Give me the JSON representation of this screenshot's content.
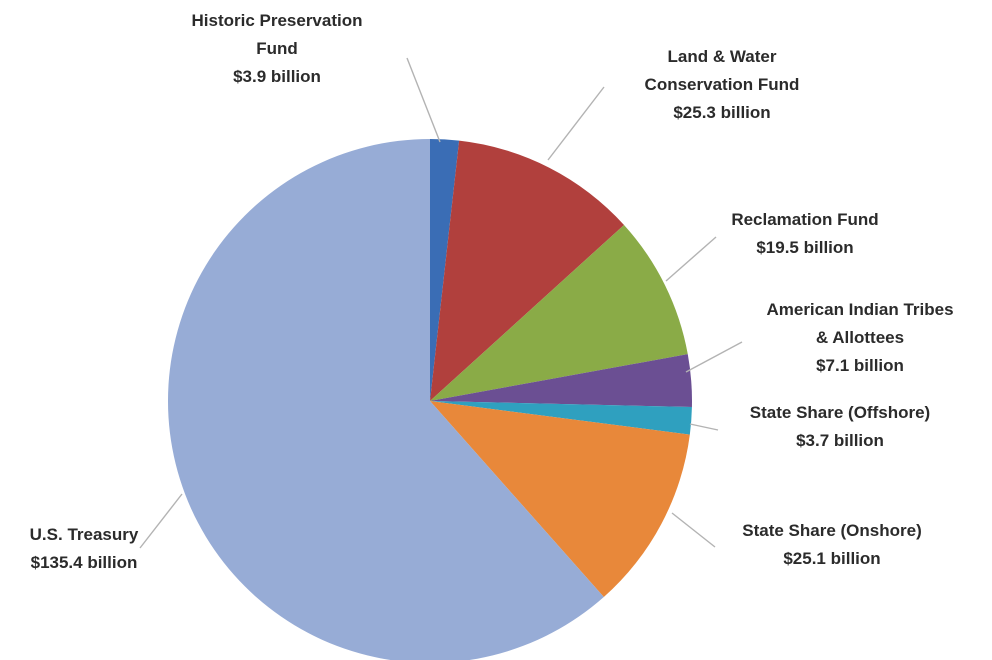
{
  "chart_data": {
    "type": "pie",
    "title": "",
    "unit": "billion dollars",
    "start": "12 o'clock, clockwise",
    "slices": [
      {
        "name": "Historic Preservation Fund",
        "value": 3.9,
        "value_label": "$3.9 billion",
        "label_lines": [
          "Historic Preservation",
          "Fund",
          "$3.9 billion"
        ],
        "color": "#3a6db5"
      },
      {
        "name": "Land & Water Conservation Fund",
        "value": 25.3,
        "value_label": "$25.3 billion",
        "label_lines": [
          "Land & Water",
          "Conservation Fund",
          "$25.3 billion"
        ],
        "color": "#b1403d"
      },
      {
        "name": "Reclamation Fund",
        "value": 19.5,
        "value_label": "$19.5 billion",
        "label_lines": [
          "Reclamation Fund",
          "$19.5 billion"
        ],
        "color": "#8aab47"
      },
      {
        "name": "American Indian Tribes & Allottees",
        "value": 7.1,
        "value_label": "$7.1 billion",
        "label_lines": [
          "American Indian Tribes",
          "& Allottees",
          "$7.1 billion"
        ],
        "color": "#6b4f93"
      },
      {
        "name": "State Share (Offshore)",
        "value": 3.7,
        "value_label": "$3.7 billion",
        "label_lines": [
          "State Share (Offshore)",
          "$3.7 billion"
        ],
        "color": "#2fa0bf"
      },
      {
        "name": "State Share (Onshore)",
        "value": 25.1,
        "value_label": "$25.1 billion",
        "label_lines": [
          "State Share (Onshore)",
          "$25.1 billion"
        ],
        "color": "#e8883a"
      },
      {
        "name": "U.S. Treasury",
        "value": 135.4,
        "value_label": "$135.4 billion",
        "label_lines": [
          "U.S. Treasury",
          "$135.4 billion"
        ],
        "color": "#97acd6"
      }
    ]
  }
}
